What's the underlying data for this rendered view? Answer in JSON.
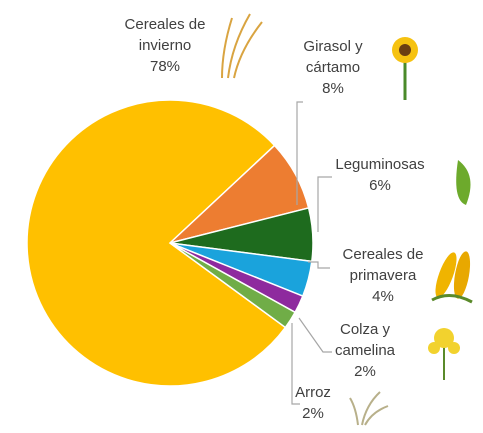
{
  "chart_data": {
    "type": "pie",
    "categories": [
      "Cereales de invierno",
      "Girasol y cártamo",
      "Leguminosas",
      "Cereales de primavera",
      "Colza y camelina",
      "Arroz"
    ],
    "values": [
      78,
      8,
      6,
      4,
      2,
      2
    ],
    "value_labels": [
      "78%",
      "8%",
      "6%",
      "4%",
      "2%",
      "2%"
    ],
    "colors": [
      "#FFC000",
      "#ED7D31",
      "#1E6B1E",
      "#1AA3DC",
      "#8E2A9E",
      "#70AD47"
    ]
  }
}
